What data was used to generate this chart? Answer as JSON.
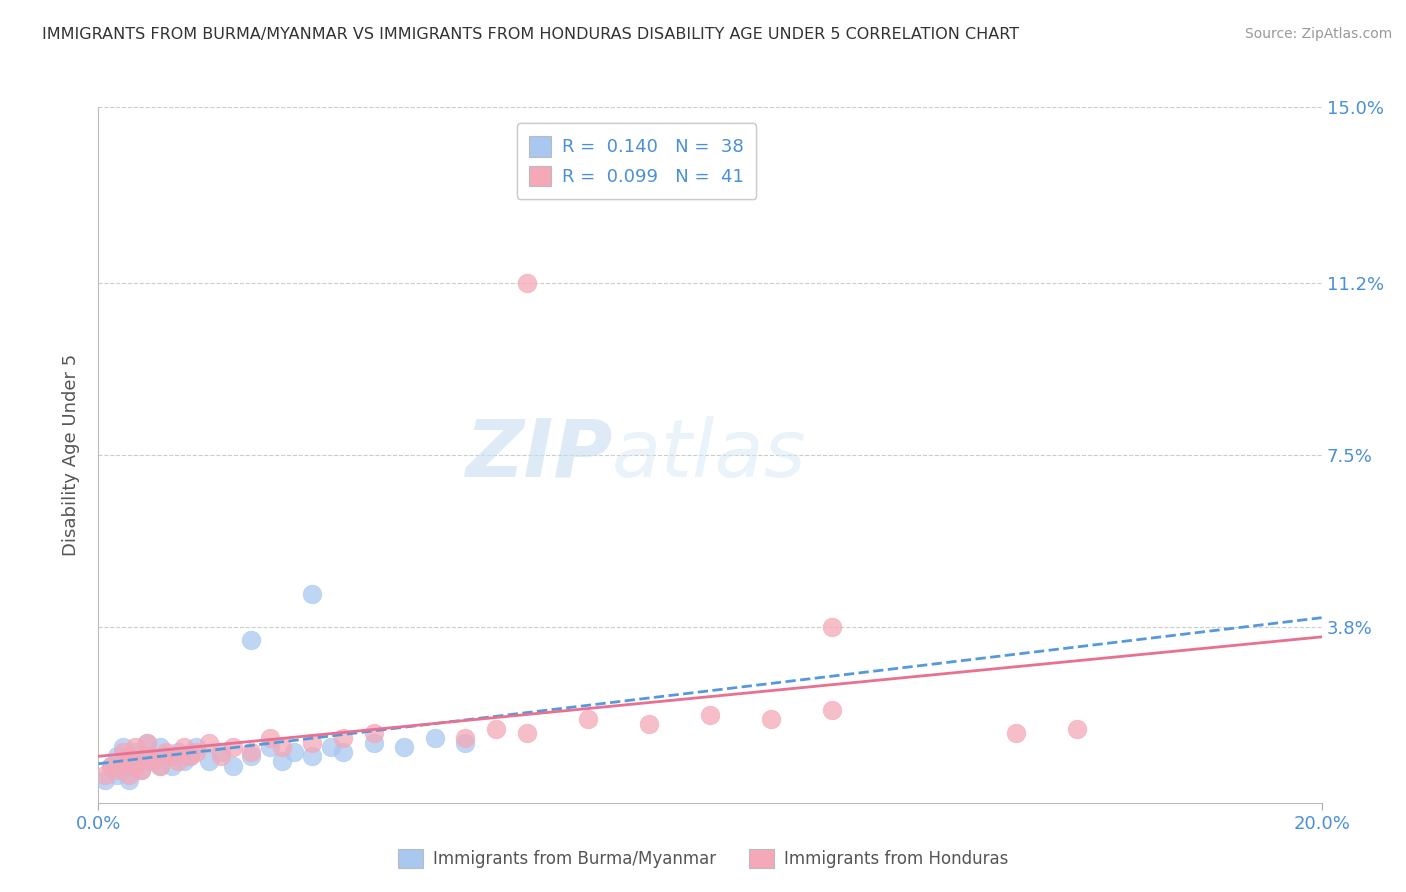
{
  "title": "IMMIGRANTS FROM BURMA/MYANMAR VS IMMIGRANTS FROM HONDURAS DISABILITY AGE UNDER 5 CORRELATION CHART",
  "source": "Source: ZipAtlas.com",
  "ylabel": "Disability Age Under 5",
  "xlim": [
    0.0,
    0.2
  ],
  "ylim": [
    0.0,
    0.15
  ],
  "ytick_positions": [
    0.038,
    0.075,
    0.112,
    0.15
  ],
  "ytick_labels": [
    "3.8%",
    "7.5%",
    "11.2%",
    "15.0%"
  ],
  "blue_color": "#a8c8f0",
  "pink_color": "#f4a8b8",
  "blue_line_color": "#5599dd",
  "pink_line_color": "#e87090",
  "blue_line_style": "--",
  "pink_line_style": "-",
  "R_blue": 0.14,
  "N_blue": 38,
  "R_pink": 0.099,
  "N_pink": 41,
  "legend_text_color": "#4a90d9",
  "watermark_zip": "ZIP",
  "watermark_atlas": "atlas",
  "background_color": "#ffffff",
  "grid_color": "#cccccc",
  "blue_scatter_x": [
    0.001,
    0.002,
    0.003,
    0.003,
    0.004,
    0.004,
    0.005,
    0.005,
    0.006,
    0.006,
    0.007,
    0.008,
    0.008,
    0.009,
    0.01,
    0.01,
    0.011,
    0.012,
    0.013,
    0.014,
    0.015,
    0.016,
    0.018,
    0.02,
    0.022,
    0.025,
    0.028,
    0.03,
    0.032,
    0.035,
    0.038,
    0.04,
    0.045,
    0.05,
    0.055,
    0.06,
    0.025,
    0.035
  ],
  "blue_scatter_y": [
    0.005,
    0.008,
    0.006,
    0.01,
    0.007,
    0.012,
    0.005,
    0.009,
    0.008,
    0.011,
    0.007,
    0.01,
    0.013,
    0.009,
    0.008,
    0.012,
    0.01,
    0.008,
    0.011,
    0.009,
    0.01,
    0.012,
    0.009,
    0.011,
    0.008,
    0.01,
    0.012,
    0.009,
    0.011,
    0.01,
    0.012,
    0.011,
    0.013,
    0.012,
    0.014,
    0.013,
    0.035,
    0.045
  ],
  "pink_scatter_x": [
    0.001,
    0.002,
    0.003,
    0.004,
    0.004,
    0.005,
    0.005,
    0.006,
    0.006,
    0.007,
    0.008,
    0.008,
    0.009,
    0.01,
    0.011,
    0.012,
    0.013,
    0.014,
    0.015,
    0.016,
    0.018,
    0.02,
    0.022,
    0.025,
    0.028,
    0.03,
    0.035,
    0.04,
    0.045,
    0.06,
    0.065,
    0.07,
    0.08,
    0.09,
    0.1,
    0.11,
    0.12,
    0.15,
    0.16,
    0.07,
    0.12
  ],
  "pink_scatter_y": [
    0.006,
    0.008,
    0.007,
    0.009,
    0.011,
    0.006,
    0.01,
    0.008,
    0.012,
    0.007,
    0.01,
    0.013,
    0.009,
    0.008,
    0.011,
    0.01,
    0.009,
    0.012,
    0.01,
    0.011,
    0.013,
    0.01,
    0.012,
    0.011,
    0.014,
    0.012,
    0.013,
    0.014,
    0.015,
    0.014,
    0.016,
    0.015,
    0.018,
    0.017,
    0.019,
    0.018,
    0.02,
    0.015,
    0.016,
    0.112,
    0.038
  ]
}
